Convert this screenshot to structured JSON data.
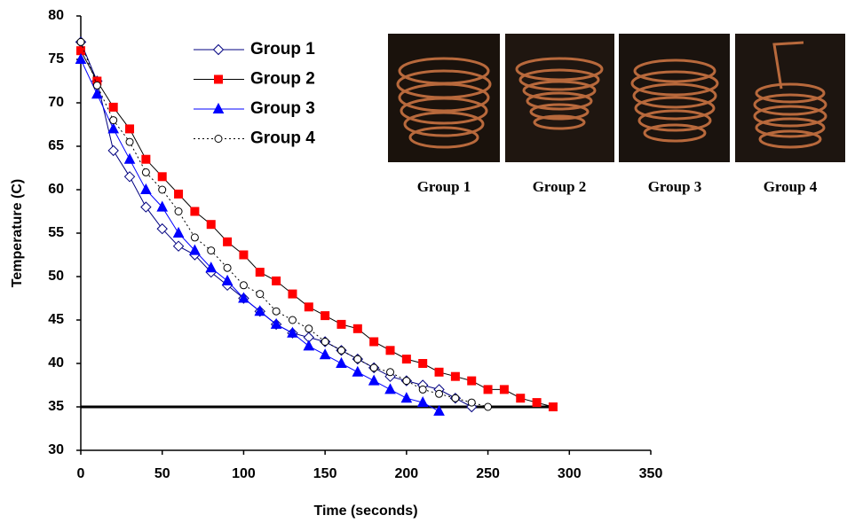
{
  "chart_data": {
    "type": "line",
    "xlabel": "Time (seconds)",
    "ylabel": "Temperature (C)",
    "xlim": [
      0,
      350
    ],
    "xticks": [
      0,
      50,
      100,
      150,
      200,
      250,
      300,
      350
    ],
    "ylim": [
      30,
      80
    ],
    "yticks": [
      30,
      35,
      40,
      45,
      50,
      55,
      60,
      65,
      70,
      75,
      80
    ],
    "reference_line": 35,
    "legend": "upper center",
    "image_labels": [
      "Group 1",
      "Group 2",
      "Group 3",
      "Group 4"
    ],
    "series": [
      {
        "name": "Group 1",
        "color": "#000080",
        "marker": "diamond",
        "x": [
          0,
          10,
          20,
          30,
          40,
          50,
          60,
          70,
          80,
          90,
          100,
          110,
          120,
          130,
          140,
          150,
          160,
          170,
          180,
          190,
          200,
          210,
          220,
          230,
          240
        ],
        "values": [
          77,
          72.5,
          64.5,
          61.5,
          58,
          55.5,
          53.5,
          52.5,
          50.5,
          49,
          47.5,
          46,
          44.5,
          43.5,
          43,
          42.5,
          41.5,
          40.5,
          39.5,
          38.5,
          38,
          37.5,
          37,
          36,
          35
        ]
      },
      {
        "name": "Group 2",
        "color": "#ff0000",
        "marker": "square",
        "x": [
          0,
          10,
          20,
          30,
          40,
          50,
          60,
          70,
          80,
          90,
          100,
          110,
          120,
          130,
          140,
          150,
          160,
          170,
          180,
          190,
          200,
          210,
          220,
          230,
          240,
          250,
          260,
          270,
          280,
          290
        ],
        "values": [
          76,
          72.5,
          69.5,
          67,
          63.5,
          61.5,
          59.5,
          57.5,
          56,
          54,
          52.5,
          50.5,
          49.5,
          48,
          46.5,
          45.5,
          44.5,
          44,
          42.5,
          41.5,
          40.5,
          40,
          39,
          38.5,
          38,
          37,
          37,
          36,
          35.5,
          35
        ]
      },
      {
        "name": "Group 3",
        "color": "#0000ff",
        "marker": "triangle",
        "x": [
          0,
          10,
          20,
          30,
          40,
          50,
          60,
          70,
          80,
          90,
          100,
          110,
          120,
          130,
          140,
          150,
          160,
          170,
          180,
          190,
          200,
          210,
          220
        ],
        "values": [
          75,
          71,
          67,
          63.5,
          60,
          58,
          55,
          53,
          51,
          49.5,
          47.5,
          46,
          44.5,
          43.5,
          42,
          41,
          40,
          39,
          38,
          37,
          36,
          35.5,
          34.5
        ]
      },
      {
        "name": "Group 4",
        "color": "#000000",
        "marker": "circle",
        "x": [
          0,
          10,
          20,
          30,
          40,
          50,
          60,
          70,
          80,
          90,
          100,
          110,
          120,
          130,
          140,
          150,
          160,
          170,
          180,
          190,
          200,
          210,
          220,
          230,
          240,
          250
        ],
        "values": [
          77,
          72,
          68,
          65.5,
          62,
          60,
          57.5,
          54.5,
          53,
          51,
          49,
          48,
          46,
          45,
          44,
          42.5,
          41.5,
          40.5,
          39.5,
          39,
          38,
          37,
          36.5,
          36,
          35.5,
          35
        ]
      }
    ]
  }
}
